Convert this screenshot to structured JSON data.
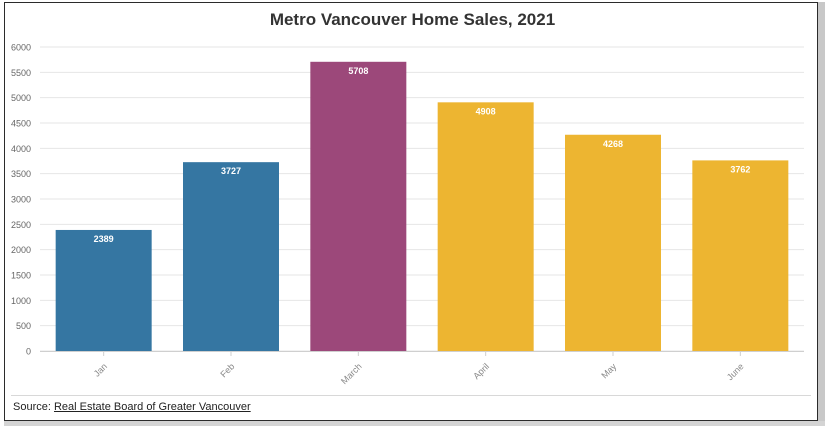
{
  "chart_data": {
    "type": "bar",
    "title": "Metro Vancouver Home Sales, 2021",
    "categories": [
      "Jan",
      "Feb",
      "March",
      "April",
      "May",
      "June"
    ],
    "values": [
      2389,
      3727,
      5708,
      4908,
      4268,
      3762
    ],
    "colors": [
      "#3576a2",
      "#3576a2",
      "#9c487a",
      "#edb531",
      "#edb531",
      "#edb531"
    ],
    "ylim": [
      0,
      6000
    ],
    "yticks": [
      0,
      500,
      1000,
      1500,
      2000,
      2500,
      3000,
      3500,
      4000,
      4500,
      5000,
      5500,
      6000
    ],
    "grid": true,
    "data_labels": true
  },
  "source": {
    "prefix": "Source:",
    "link_text": "Real Estate Board of Greater Vancouver"
  }
}
